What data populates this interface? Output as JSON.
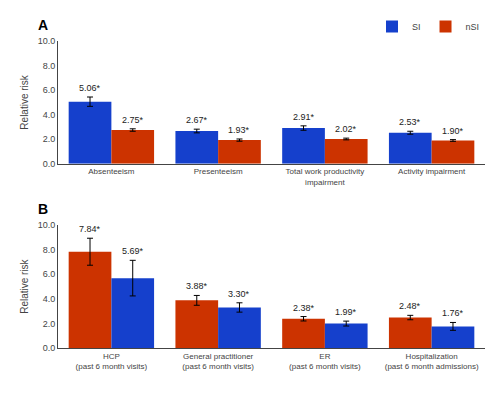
{
  "chart_data": [
    {
      "type": "bar",
      "title": "A",
      "categories": [
        "Absenteeism",
        "Presenteeism",
        "Total work productivity\nimpairment",
        "Activity impairment"
      ],
      "series": [
        {
          "name": "SI",
          "color": "#1540cc",
          "values": [
            5.06,
            2.67,
            2.91,
            2.53
          ],
          "errors": [
            0.38,
            0.15,
            0.18,
            0.12
          ],
          "value_labels": [
            "5.06*",
            "2.67*",
            "2.91*",
            "2.53*"
          ]
        },
        {
          "name": "nSI",
          "color": "#cc3300",
          "values": [
            2.75,
            1.93,
            2.02,
            1.9
          ],
          "errors": [
            0.1,
            0.09,
            0.07,
            0.07
          ],
          "value_labels": [
            "2.75*",
            "1.93*",
            "2.02*",
            "1.90*"
          ]
        }
      ],
      "ylabel": "Relative risk",
      "ylim": [
        0,
        10.0
      ],
      "yticks": [
        {
          "value": 0.0,
          "label": "0.0"
        },
        {
          "value": 2.0,
          "label": "2.0"
        },
        {
          "value": 4.0,
          "label": "4.0"
        },
        {
          "value": 6.0,
          "label": "6.0"
        },
        {
          "value": 8.0,
          "label": "8.0"
        },
        {
          "value": 10.0,
          "label": "10.0"
        }
      ],
      "grid": false,
      "legend": "upper right",
      "data_labels": true
    },
    {
      "type": "bar",
      "title": "B",
      "categories": [
        "HCP\n(past 6 month visits)",
        "General practitioner\n(past 6 month visits)",
        "ER\n(past 6 month visits)",
        "Hospitalization\n(past 6 month admissions)"
      ],
      "series": [
        {
          "name": "nSI",
          "color": "#cc3300",
          "values": [
            7.84,
            3.88,
            2.38,
            2.48
          ],
          "errors": [
            1.1,
            0.4,
            0.18,
            0.18
          ],
          "value_labels": [
            "7.84*",
            "3.88*",
            "2.38*",
            "2.48*"
          ]
        },
        {
          "name": "SI",
          "color": "#1540cc",
          "values": [
            5.69,
            3.3,
            1.99,
            1.76
          ],
          "errors": [
            1.45,
            0.38,
            0.2,
            0.32
          ],
          "value_labels": [
            "5.69*",
            "3.30*",
            "1.99*",
            "1.76*"
          ]
        }
      ],
      "ylabel": "Relative risk",
      "ylim": [
        0,
        10.0
      ],
      "yticks": [
        {
          "value": 0.0,
          "label": "0.0"
        },
        {
          "value": 2.0,
          "label": "2.0"
        },
        {
          "value": 4.0,
          "label": "4.0"
        },
        {
          "value": 6.0,
          "label": "6.0"
        },
        {
          "value": 8.0,
          "label": "8.0"
        },
        {
          "value": 10.0,
          "label": "10.0"
        }
      ],
      "grid": false,
      "data_labels": true
    }
  ]
}
